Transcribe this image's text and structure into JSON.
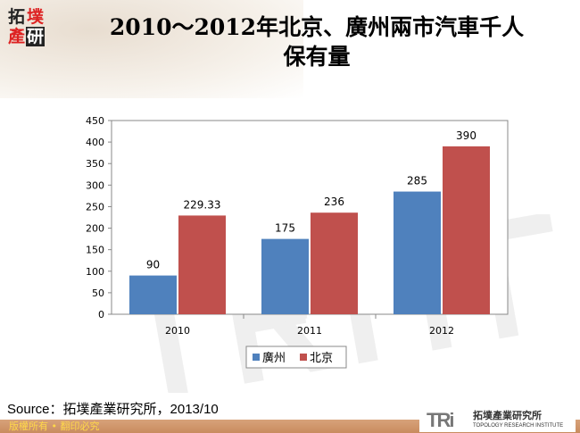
{
  "logo": {
    "chars": [
      "拓",
      "墣",
      "產",
      "研"
    ]
  },
  "title_line1": "2010～2012年北京、廣州兩市汽車千人",
  "title_line2": "保有量",
  "chart_data": {
    "type": "bar",
    "title": "2010～2012年北京、廣州兩市汽車千人保有量",
    "categories": [
      "2010",
      "2011",
      "2012"
    ],
    "series": [
      {
        "name": "廣州",
        "values": [
          90,
          175,
          285
        ],
        "color": "#4f81bd"
      },
      {
        "name": "北京",
        "values": [
          229.33,
          236,
          390
        ],
        "color": "#c0504d"
      }
    ],
    "data_labels": [
      [
        "90",
        "175",
        "285"
      ],
      [
        "229.33",
        "236",
        "390"
      ]
    ],
    "ylim": [
      0,
      450
    ],
    "yticks": [
      0,
      50,
      100,
      150,
      200,
      250,
      300,
      350,
      400,
      450
    ],
    "grid": false,
    "legend": "bottom"
  },
  "source": "Source：拓墣產業研究所，2013/10",
  "copyright": "版權所有 • 翻印必究",
  "tri": {
    "mark": "TRi",
    "name": "拓墣產業研究所",
    "en": "TOPOLOGY RESEARCH INSTITUTE"
  }
}
